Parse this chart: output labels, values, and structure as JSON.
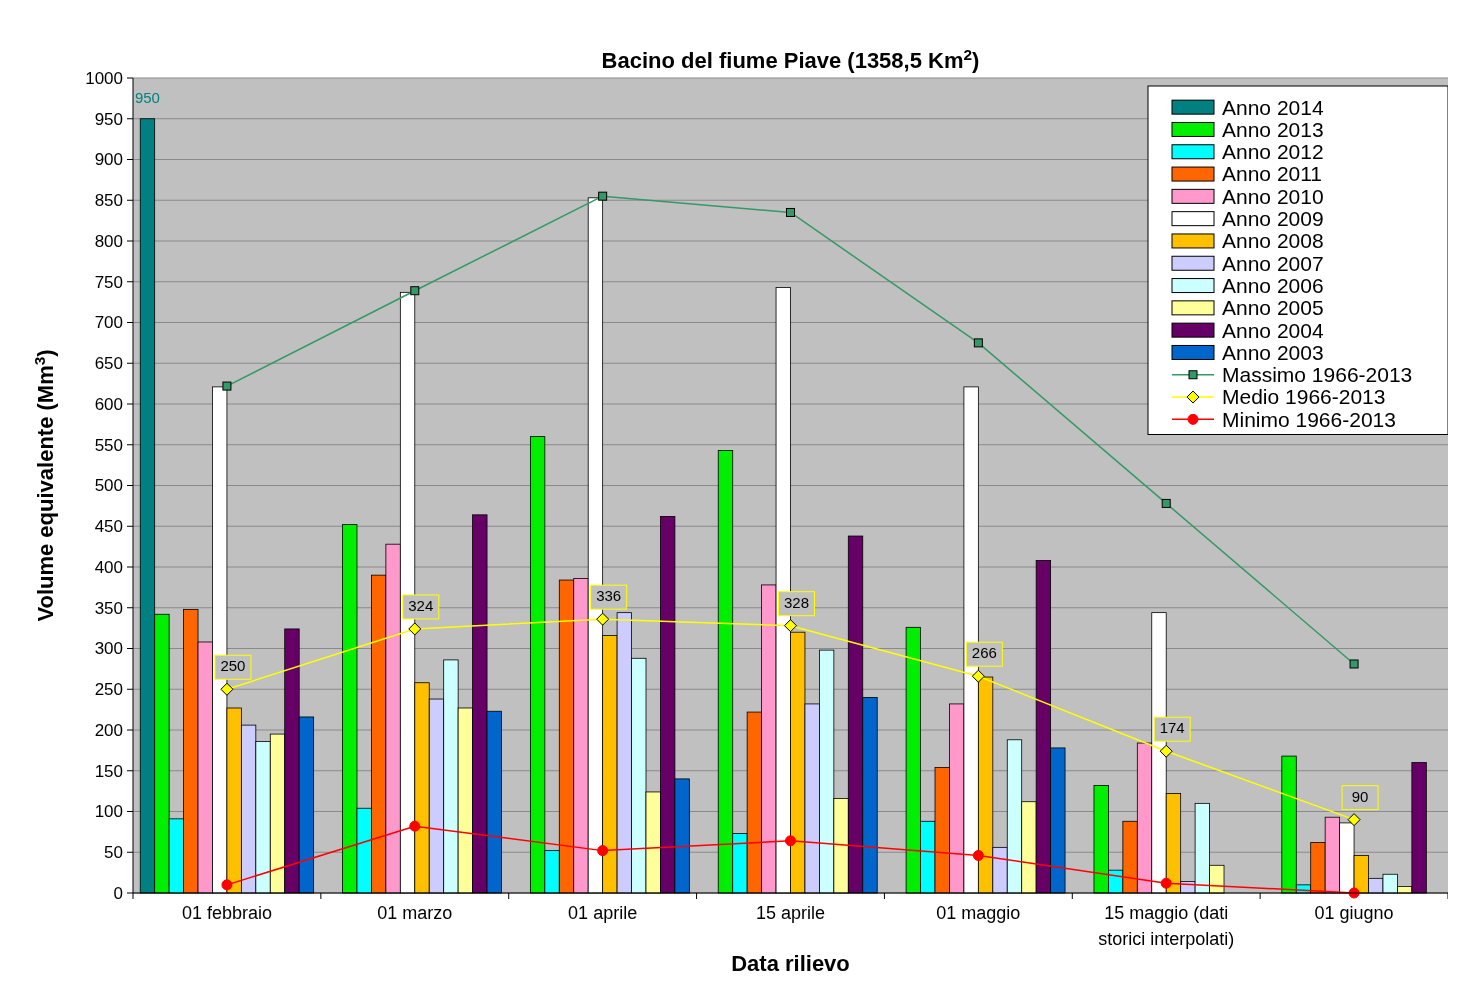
{
  "chart_data": {
    "type": "bar",
    "title": "Bacino del fiume Piave (1358,5 Km$^{2}$)",
    "xlabel": "Data rilievo",
    "ylabel": "Volume equivalente (Mm$^{3}$)",
    "categories": [
      "01 febbraio",
      "01 marzo",
      "01 aprile",
      "15 aprile",
      "01 maggio",
      "15 maggio (dati storici interpolati)",
      "01 giugno"
    ],
    "ylim": [
      0,
      1000
    ],
    "yticks": [
      0,
      50,
      100,
      150,
      200,
      250,
      300,
      350,
      400,
      450,
      500,
      550,
      600,
      650,
      700,
      750,
      800,
      850,
      900,
      950,
      1000
    ],
    "grid": "y",
    "legend": "top right",
    "series": [
      {
        "name": "Anno 2014",
        "color": "#008080",
        "values": [
          950,
          null,
          null,
          null,
          null,
          null,
          null
        ],
        "value_labels": [
          "950",
          null,
          null,
          null,
          null,
          null,
          null
        ]
      },
      {
        "name": "Anno 2013",
        "color": "#00ee00",
        "values": [
          342,
          452,
          560,
          543,
          326,
          132,
          168
        ]
      },
      {
        "name": "Anno 2012",
        "color": "#00ffff",
        "values": [
          91,
          104,
          52,
          73,
          88,
          28,
          10
        ]
      },
      {
        "name": "Anno 2011",
        "color": "#ff6600",
        "values": [
          348,
          390,
          384,
          222,
          154,
          88,
          62
        ]
      },
      {
        "name": "Anno 2010",
        "color": "#ff99cc",
        "values": [
          308,
          428,
          386,
          378,
          232,
          184,
          93
        ]
      },
      {
        "name": "Anno 2009",
        "color": "#ffffff",
        "values": [
          621,
          737,
          853,
          743,
          621,
          344,
          86
        ]
      },
      {
        "name": "Anno 2008",
        "color": "#ffc000",
        "values": [
          227,
          258,
          316,
          320,
          265,
          122,
          46
        ]
      },
      {
        "name": "Anno 2007",
        "color": "#ccccff",
        "values": [
          206,
          238,
          344,
          232,
          56,
          14,
          18
        ]
      },
      {
        "name": "Anno 2006",
        "color": "#ccffff",
        "values": [
          186,
          286,
          288,
          298,
          188,
          110,
          23
        ]
      },
      {
        "name": "Anno 2005",
        "color": "#ffff99",
        "values": [
          195,
          227,
          124,
          116,
          112,
          34,
          8
        ]
      },
      {
        "name": "Anno 2004",
        "color": "#660066",
        "values": [
          324,
          464,
          462,
          438,
          408,
          null,
          160
        ]
      },
      {
        "name": "Anno 2003",
        "color": "#0066cc",
        "values": [
          216,
          223,
          140,
          240,
          178,
          null,
          null
        ]
      },
      {
        "name": "Massimo 1966-2013",
        "type": "line",
        "marker": "square",
        "color": "#339966",
        "values": [
          622,
          739,
          855,
          835,
          675,
          478,
          281
        ]
      },
      {
        "name": "Medio 1966-2013",
        "type": "line",
        "marker": "diamond",
        "color": "#ffff00",
        "values": [
          250,
          324,
          336,
          328,
          266,
          174,
          90
        ],
        "value_labels": [
          "250",
          "324",
          "336",
          "328",
          "266",
          "174",
          "90"
        ]
      },
      {
        "name": "Minimo 1966-2013",
        "type": "line",
        "marker": "circle",
        "color": "#ff0000",
        "values": [
          10,
          82,
          52,
          64,
          46,
          12,
          0
        ]
      }
    ]
  }
}
